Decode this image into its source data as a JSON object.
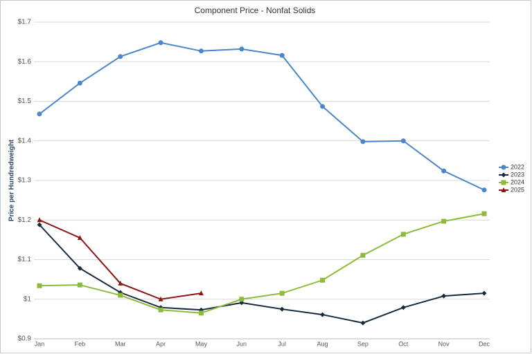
{
  "chart_data": {
    "type": "line",
    "title": "Component Price - Nonfat Solids",
    "y_label": "Price per Hundredweight",
    "categories": [
      "Jan",
      "Feb",
      "Mar",
      "Apr",
      "May",
      "Jun",
      "Jul",
      "Aug",
      "Sep",
      "Oct",
      "Nov",
      "Dec"
    ],
    "series": [
      {
        "name": "2022",
        "color": "#4a86c8",
        "marker": "circle",
        "values": [
          1.468,
          1.546,
          1.613,
          1.648,
          1.627,
          1.632,
          1.616,
          1.487,
          1.398,
          1.4,
          1.324,
          1.276
        ]
      },
      {
        "name": "2023",
        "color": "#172a3d",
        "marker": "diamond",
        "values": [
          1.188,
          1.078,
          1.017,
          0.979,
          0.973,
          0.991,
          0.975,
          0.961,
          0.94,
          0.979,
          1.008,
          1.015
        ]
      },
      {
        "name": "2024",
        "color": "#8cbb3c",
        "marker": "square",
        "values": [
          1.034,
          1.036,
          1.01,
          0.973,
          0.965,
          1.0,
          1.015,
          1.048,
          1.111,
          1.164,
          1.197,
          1.216
        ]
      },
      {
        "name": "2025",
        "color": "#8b1515",
        "marker": "triangle",
        "values": [
          1.2,
          1.155,
          1.04,
          1.0,
          1.015,
          null,
          null,
          null,
          null,
          null,
          null,
          null
        ]
      }
    ],
    "ylim": [
      0.9,
      1.7
    ],
    "yticks": [
      {
        "value": 0.9,
        "label": "$0.9"
      },
      {
        "value": 1.0,
        "label": "$1"
      },
      {
        "value": 1.1,
        "label": "$1.1"
      },
      {
        "value": 1.2,
        "label": "$1.2"
      },
      {
        "value": 1.3,
        "label": "$1.3"
      },
      {
        "value": 1.4,
        "label": "$1.4"
      },
      {
        "value": 1.5,
        "label": "$1.5"
      },
      {
        "value": 1.6,
        "label": "$1.6"
      },
      {
        "value": 1.7,
        "label": "$1.7"
      }
    ],
    "grid": true,
    "legend": "right"
  }
}
